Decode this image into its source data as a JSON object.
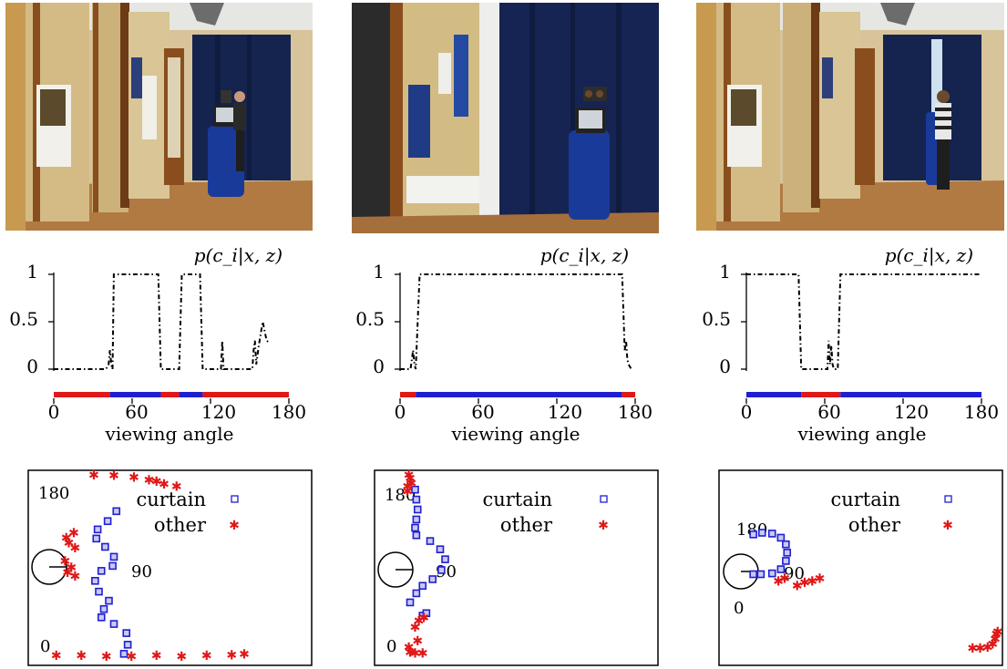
{
  "colors": {
    "curtain": "#1f1fd0",
    "other": "#e01818",
    "prob": "#000000"
  },
  "chart_data": [
    {
      "panel": "left",
      "type": "line",
      "title": "p(c_i|x, z)",
      "xlabel": "viewing angle",
      "xticks": [
        0,
        60,
        120,
        180
      ],
      "yticks": [
        0,
        0.5,
        1
      ],
      "xlim": [
        0,
        180
      ],
      "ylim": [
        0,
        1
      ],
      "prob": [
        [
          0,
          0
        ],
        [
          40,
          0
        ],
        [
          42,
          0.05
        ],
        [
          43,
          0.2
        ],
        [
          44,
          0.05
        ],
        [
          45,
          0
        ],
        [
          46,
          1
        ],
        [
          80,
          1
        ],
        [
          82,
          0
        ],
        [
          96,
          0
        ],
        [
          98,
          1
        ],
        [
          112,
          1
        ],
        [
          114,
          0
        ],
        [
          128,
          0
        ],
        [
          129,
          0.3
        ],
        [
          130,
          0
        ],
        [
          152,
          0
        ],
        [
          153,
          0.2
        ],
        [
          154,
          0.3
        ],
        [
          155,
          0.05
        ],
        [
          157,
          0.25
        ],
        [
          160,
          0.5
        ],
        [
          163,
          0.3
        ],
        [
          165,
          0.28
        ]
      ],
      "strip": [
        {
          "from": 0,
          "to": 43,
          "class": "other"
        },
        {
          "from": 43,
          "to": 82,
          "class": "curtain"
        },
        {
          "from": 82,
          "to": 96,
          "class": "other"
        },
        {
          "from": 96,
          "to": 114,
          "class": "curtain"
        },
        {
          "from": 114,
          "to": 180,
          "class": "other"
        }
      ],
      "scan": {
        "tick_labels": [
          "180",
          "90",
          "0"
        ],
        "legend": [
          "curtain",
          "other"
        ],
        "curtain": [
          [
            3.2,
            0.2
          ],
          [
            3.35,
            0.75
          ],
          [
            3.3,
            1.45
          ],
          [
            2.8,
            2.0
          ],
          [
            2.3,
            2.4
          ],
          [
            2.4,
            2.9
          ],
          [
            2.6,
            3.4
          ],
          [
            2.2,
            3.95
          ],
          [
            2.05,
            4.6
          ],
          [
            2.3,
            5.2
          ],
          [
            2.75,
            5.5
          ],
          [
            2.8,
            6.05
          ],
          [
            2.45,
            6.65
          ],
          [
            2.1,
            7.15
          ],
          [
            2.15,
            7.7
          ],
          [
            2.55,
            8.2
          ],
          [
            2.9,
            8.8
          ]
        ],
        "other": [
          [
            1.2,
            7.5
          ],
          [
            0.9,
            7.2
          ],
          [
            1.0,
            6.9
          ],
          [
            1.25,
            6.6
          ],
          [
            0.85,
            5.8
          ],
          [
            1.1,
            5.4
          ],
          [
            0.95,
            5.1
          ],
          [
            1.25,
            4.9
          ],
          [
            2.0,
            11.0
          ],
          [
            2.8,
            10.95
          ],
          [
            3.6,
            10.85
          ],
          [
            4.2,
            10.7
          ],
          [
            4.5,
            10.6
          ],
          [
            4.8,
            10.45
          ],
          [
            5.3,
            10.3
          ],
          [
            0.5,
            0.1
          ],
          [
            1.5,
            0.1
          ],
          [
            2.5,
            0.05
          ],
          [
            3.5,
            0.05
          ],
          [
            4.5,
            0.1
          ],
          [
            5.5,
            0.05
          ],
          [
            6.5,
            0.1
          ],
          [
            7.5,
            0.15
          ],
          [
            8.0,
            0.2
          ]
        ]
      }
    },
    {
      "panel": "middle",
      "type": "line",
      "title": "p(c_i|x, z)",
      "xlabel": "viewing angle",
      "xticks": [
        0,
        60,
        120,
        180
      ],
      "yticks": [
        0,
        0.5,
        1
      ],
      "xlim": [
        0,
        180
      ],
      "ylim": [
        0,
        1
      ],
      "prob": [
        [
          0,
          0
        ],
        [
          8,
          0
        ],
        [
          9,
          0.1
        ],
        [
          10,
          0.2
        ],
        [
          11,
          0.05
        ],
        [
          12,
          0
        ],
        [
          15,
          1
        ],
        [
          170,
          1
        ],
        [
          172,
          0.2
        ],
        [
          173,
          0.3
        ],
        [
          174,
          0.1
        ],
        [
          175,
          0.05
        ],
        [
          177,
          0
        ]
      ],
      "strip": [
        {
          "from": 0,
          "to": 12,
          "class": "other"
        },
        {
          "from": 12,
          "to": 170,
          "class": "curtain"
        },
        {
          "from": 170,
          "to": 180,
          "class": "other"
        }
      ],
      "scan": {
        "tick_labels": [
          "180",
          "90",
          "0"
        ],
        "legend": [
          "curtain",
          "other"
        ],
        "curtain": [
          [
            0.8,
            3.3
          ],
          [
            1.05,
            3.85
          ],
          [
            1.3,
            4.3
          ],
          [
            1.7,
            4.7
          ],
          [
            2.05,
            5.25
          ],
          [
            2.2,
            5.9
          ],
          [
            2.0,
            6.5
          ],
          [
            1.6,
            7.0
          ],
          [
            1.05,
            7.35
          ],
          [
            1.0,
            7.8
          ],
          [
            1.05,
            8.3
          ],
          [
            1.1,
            8.9
          ],
          [
            1.05,
            9.5
          ],
          [
            1.0,
            10.1
          ],
          [
            1.3,
            2.5
          ],
          [
            1.45,
            2.65
          ]
        ],
        "other": [
          [
            0.75,
            11.0
          ],
          [
            0.8,
            10.8
          ],
          [
            0.85,
            10.5
          ],
          [
            0.7,
            10.3
          ],
          [
            0.7,
            10.0
          ],
          [
            0.75,
            0.6
          ],
          [
            0.8,
            0.3
          ],
          [
            1.0,
            0.25
          ],
          [
            1.3,
            0.25
          ],
          [
            1.1,
            1.0
          ],
          [
            1.0,
            1.8
          ],
          [
            1.15,
            2.2
          ],
          [
            1.35,
            2.4
          ]
        ]
      }
    },
    {
      "panel": "right",
      "type": "line",
      "title": "p(c_i|x, z)",
      "xlabel": "viewing angle",
      "xticks": [
        0,
        60,
        120,
        180
      ],
      "yticks": [
        0,
        0.5,
        1
      ],
      "xlim": [
        0,
        180
      ],
      "ylim": [
        0,
        1
      ],
      "prob": [
        [
          0,
          1
        ],
        [
          40,
          1
        ],
        [
          42,
          0
        ],
        [
          62,
          0
        ],
        [
          63,
          0.3
        ],
        [
          64,
          0.05
        ],
        [
          65,
          0.25
        ],
        [
          66,
          0.05
        ],
        [
          67,
          0
        ],
        [
          70,
          0
        ],
        [
          72,
          1
        ],
        [
          180,
          1
        ]
      ],
      "strip": [
        {
          "from": 0,
          "to": 42,
          "class": "curtain"
        },
        {
          "from": 42,
          "to": 72,
          "class": "other"
        },
        {
          "from": 72,
          "to": 180,
          "class": "curtain"
        }
      ],
      "scan": {
        "tick_labels": [
          "180",
          "90",
          "0"
        ],
        "legend": [
          "curtain",
          "other"
        ],
        "curtain": [
          [
            0.75,
            7.4
          ],
          [
            1.1,
            7.5
          ],
          [
            1.5,
            7.45
          ],
          [
            1.85,
            7.2
          ],
          [
            2.05,
            6.8
          ],
          [
            2.1,
            6.3
          ],
          [
            2.05,
            5.8
          ],
          [
            1.85,
            5.3
          ],
          [
            1.5,
            5.05
          ],
          [
            1.05,
            5.0
          ],
          [
            0.75,
            5.0
          ]
        ],
        "other": [
          [
            1.75,
            4.6
          ],
          [
            2.0,
            4.75
          ],
          [
            2.5,
            4.3
          ],
          [
            2.8,
            4.5
          ],
          [
            3.1,
            4.6
          ],
          [
            3.4,
            4.75
          ],
          [
            9.5,
            0.55
          ],
          [
            9.8,
            0.55
          ],
          [
            10.1,
            0.6
          ],
          [
            10.3,
            0.8
          ],
          [
            10.4,
            1.1
          ],
          [
            10.45,
            1.4
          ],
          [
            10.5,
            1.55
          ]
        ]
      }
    }
  ]
}
